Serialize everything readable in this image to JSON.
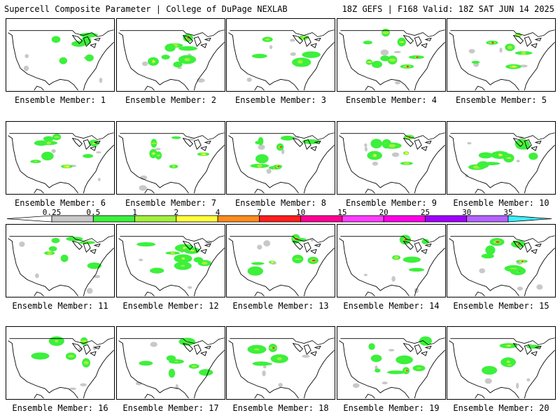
{
  "header": {
    "title": "Supercell Composite Parameter | College of DuPage NEXLAB",
    "run_info": "18Z GEFS | F168 Valid: 18Z SAT JUN 14 2025"
  },
  "members": [
    {
      "label": "Ensemble Member: 1"
    },
    {
      "label": "Ensemble Member: 2"
    },
    {
      "label": "Ensemble Member: 3"
    },
    {
      "label": "Ensemble Member: 4"
    },
    {
      "label": "Ensemble Member: 5"
    },
    {
      "label": "Ensemble Member: 6"
    },
    {
      "label": "Ensemble Member: 7"
    },
    {
      "label": "Ensemble Member: 8"
    },
    {
      "label": "Ensemble Member: 9"
    },
    {
      "label": "Ensemble Member: 10"
    },
    {
      "label": "Ensemble Member: 11"
    },
    {
      "label": "Ensemble Member: 12"
    },
    {
      "label": "Ensemble Member: 13"
    },
    {
      "label": "Ensemble Member: 14"
    },
    {
      "label": "Ensemble Member: 15"
    },
    {
      "label": "Ensemble Member: 16"
    },
    {
      "label": "Ensemble Member: 17"
    },
    {
      "label": "Ensemble Member: 18"
    },
    {
      "label": "Ensemble Member: 19"
    },
    {
      "label": "Ensemble Member: 20"
    }
  ],
  "colorbar": {
    "levels": [
      "0.25",
      "0.5",
      "1",
      "2",
      "4",
      "7",
      "10",
      "15",
      "20",
      "25",
      "30",
      "35"
    ],
    "colors": [
      "#c8c8c8",
      "#3cf03c",
      "#a0f03c",
      "#ffff3c",
      "#ff8c1e",
      "#ff1e1e",
      "#ff0096",
      "#ff3cff",
      "#ff00e6",
      "#a000ff",
      "#b464ff",
      "#3cf0ff"
    ]
  }
}
